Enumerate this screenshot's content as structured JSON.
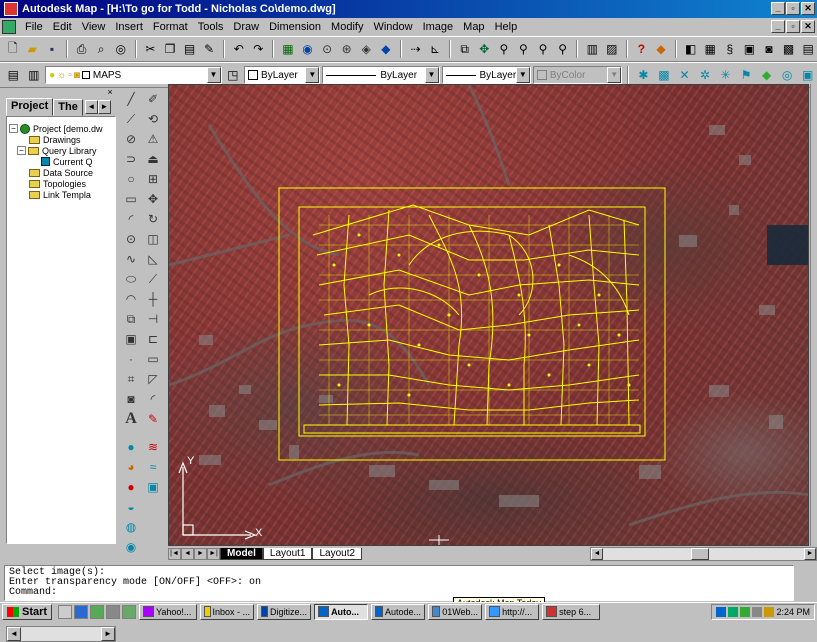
{
  "window": {
    "title": "Autodesk Map - [H:\\To go for Todd - Nicholas Co\\demo.dwg]",
    "title_buttons": [
      "_",
      "▫",
      "✕"
    ],
    "doc_buttons": [
      "_",
      "▫",
      "✕"
    ]
  },
  "menu": [
    "File",
    "Edit",
    "View",
    "Insert",
    "Format",
    "Tools",
    "Draw",
    "Dimension",
    "Modify",
    "Window",
    "Image",
    "Map",
    "Help"
  ],
  "toolbar2": {
    "layer": "MAPS",
    "color": "ByLayer",
    "linetype": "ByLayer",
    "lineweight": "ByLayer",
    "plotstyle": "ByColor"
  },
  "panel": {
    "tabs": [
      "Project",
      "The"
    ],
    "tab_nav": [
      "◄",
      "►"
    ],
    "close": "×",
    "tree": [
      {
        "label": "Project [demo.dw",
        "type": "project",
        "expander": "−"
      },
      {
        "label": "Drawings",
        "type": "folder"
      },
      {
        "label": "Query Library",
        "type": "folder",
        "expander": "−"
      },
      {
        "label": "Current Q",
        "type": "doc"
      },
      {
        "label": "Data Source",
        "type": "folder"
      },
      {
        "label": "Topologies",
        "type": "folder"
      },
      {
        "label": "Link Templa",
        "type": "folder"
      }
    ]
  },
  "viewport": {
    "layout_tabs": [
      "Model",
      "Layout1",
      "Layout2"
    ],
    "ucs_x": "X",
    "ucs_y": "Y"
  },
  "command": {
    "lines": [
      "Select image(s):",
      "Enter transparency mode [ON/OFF] <OFF>: on",
      "Command:"
    ]
  },
  "tooltip": "Autodesk Map Today",
  "taskbar": {
    "start": "Start",
    "items": [
      {
        "label": "Yahoo!...",
        "color": "#a0f"
      },
      {
        "label": "Inbox - ...",
        "color": "#ec0"
      },
      {
        "label": "Digitize...",
        "color": "#04a"
      },
      {
        "label": "Auto...",
        "color": "#06c",
        "active": true
      },
      {
        "label": "Autode...",
        "color": "#06c"
      },
      {
        "label": "01Web...",
        "color": "#48c"
      },
      {
        "label": "http://...",
        "color": "#39f"
      },
      {
        "label": "step 6...",
        "color": "#c33"
      }
    ],
    "clock": "2:24 PM"
  }
}
